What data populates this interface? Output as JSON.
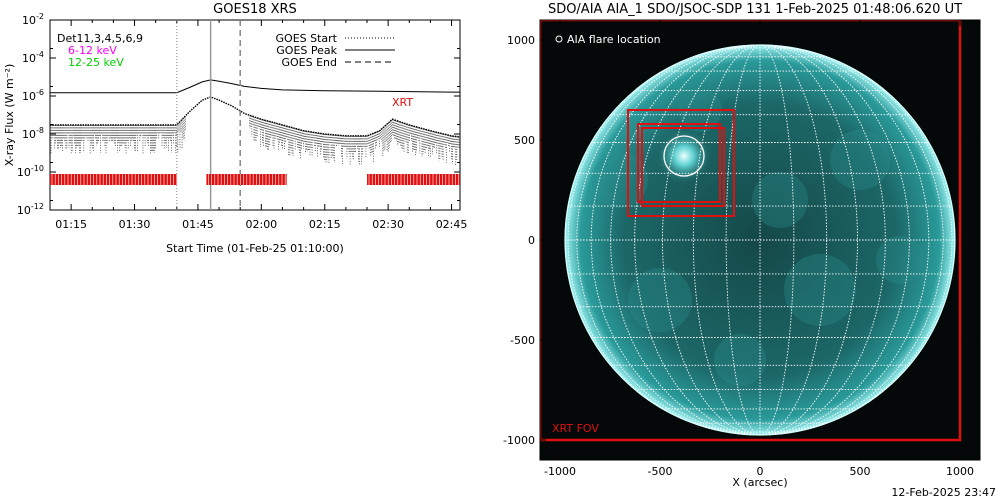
{
  "left_title": "GOES18 XRS",
  "right_title": "SDO/AIA AIA_1 SDO/JSOC-SDP 131  1-Feb-2025 01:48:06.620 UT",
  "footer_timestamp": "12-Feb-2025 23:47",
  "colors": {
    "xrt_red": "#e01010",
    "low_band": "#ff00ff",
    "high_band": "#00d000",
    "sun_teal": "#1e8f8f"
  },
  "chart_data": [
    {
      "type": "line",
      "title": "GOES18 XRS",
      "xlabel": "Start Time (01-Feb-25 01:10:00)",
      "ylabel": "X-ray Flux (W m⁻²)",
      "scale": "log",
      "ylim": [
        1e-12,
        0.01
      ],
      "xlim_minutes_after_start": [
        0,
        97
      ],
      "x_ticks": [
        "01:15",
        "01:30",
        "01:45",
        "02:00",
        "02:15",
        "02:30",
        "02:45"
      ],
      "y_ticks": [
        {
          "label": "10",
          "exp": "-2",
          "value": 0.01
        },
        {
          "label": "10",
          "exp": "-4",
          "value": 0.0001
        },
        {
          "label": "10",
          "exp": "-6",
          "value": 1e-06
        },
        {
          "label": "10",
          "exp": "-8",
          "value": 1e-08
        },
        {
          "label": "10",
          "exp": "-10",
          "value": 1e-10
        },
        {
          "label": "10",
          "exp": "-12",
          "value": 1e-12
        }
      ],
      "legend_left": [
        "Det11,3,4,5,6,9",
        "6-12 keV",
        "12-25 keV"
      ],
      "legend_right": [
        {
          "label": "GOES Start",
          "style": "dotted"
        },
        {
          "label": "GOES Peak",
          "style": "solid"
        },
        {
          "label": "GOES End",
          "style": "dashed"
        }
      ],
      "xrt_label": "XRT",
      "event_times": {
        "goes_start": "01:40",
        "goes_peak": "01:48",
        "goes_end": "01:55"
      },
      "series": [
        {
          "style": "solid",
          "x": [
            "01:10",
            "01:20",
            "01:30",
            "01:40",
            "01:43",
            "01:46",
            "01:48",
            "01:50",
            "01:53",
            "01:56",
            "02:00",
            "02:05",
            "02:15",
            "02:25",
            "02:35",
            "02:45",
            "02:47"
          ],
          "values": [
            1.5e-06,
            1.5e-06,
            1.5e-06,
            1.5e-06,
            2.8e-06,
            5.5e-06,
            7e-06,
            6e-06,
            4.5e-06,
            3.2e-06,
            2.5e-06,
            2.1e-06,
            1.9e-06,
            1.8e-06,
            1.7e-06,
            1.6e-06,
            1.6e-06
          ]
        },
        {
          "style": "dotted",
          "x": [
            "01:10",
            "01:20",
            "01:30",
            "01:40",
            "01:43",
            "01:46",
            "01:48",
            "01:50",
            "01:53",
            "01:56",
            "02:00",
            "02:05",
            "02:10",
            "02:15",
            "02:20",
            "02:25",
            "02:28",
            "02:31",
            "02:35",
            "02:40",
            "02:45",
            "02:47"
          ],
          "values": [
            3e-08,
            3e-08,
            3e-08,
            3e-08,
            1.5e-07,
            6e-07,
            9e-07,
            6e-07,
            3e-07,
            1.2e-07,
            6e-08,
            3e-08,
            1.5e-08,
            1e-08,
            8e-09,
            8e-09,
            1.5e-08,
            6e-08,
            3e-08,
            1.5e-08,
            8e-09,
            7e-09
          ]
        }
      ],
      "xrt_coverage": [
        [
          "01:10",
          "01:40"
        ],
        [
          "01:47",
          "02:06"
        ],
        [
          "02:25",
          "02:47"
        ]
      ]
    },
    {
      "type": "scatter",
      "title": "SDO/AIA AIA_1 SDO/JSOC-SDP 131  1-Feb-2025 01:48:06.620 UT",
      "xlabel": "X (arcsec)",
      "ylabel": "",
      "xlim": [
        -1100,
        1100
      ],
      "ylim": [
        -1100,
        1100
      ],
      "x_ticks": [
        -1000,
        -500,
        0,
        500,
        1000
      ],
      "y_ticks": [
        1000,
        500,
        0,
        -500,
        -1000
      ],
      "solar_radius_arcsec": 975,
      "grid_spacing_deg": 10,
      "flare_location": {
        "x": -380,
        "y": 420
      },
      "flare_label": "AIA flare location",
      "xrt_fov": {
        "x": [
          -1100,
          1000
        ],
        "y": [
          -1000,
          1100
        ]
      },
      "xrt_fov_label": "XRT FOV",
      "xrt_boxes": [
        {
          "x": [
            -660,
            -130
          ],
          "y": [
            120,
            650
          ]
        },
        {
          "x": [
            -610,
            -200
          ],
          "y": [
            190,
            580
          ]
        },
        {
          "x": [
            -590,
            -180
          ],
          "y": [
            170,
            560
          ]
        }
      ]
    }
  ]
}
